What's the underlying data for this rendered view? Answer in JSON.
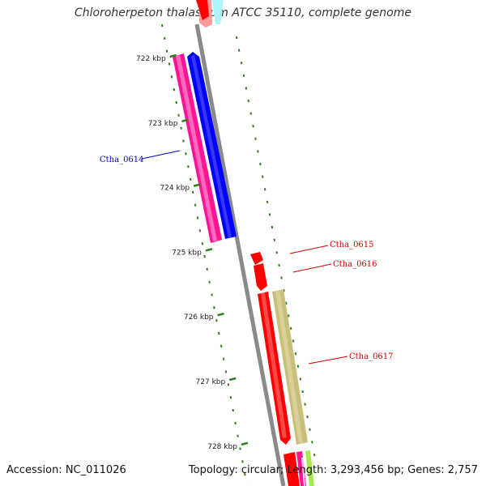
{
  "title": "Chloroherpeton thalassium ATCC 35110, complete genome",
  "footer": {
    "accession": "Accession: NC_011026",
    "summary": "Topology: circular; Length: 3,293,456 bp; Genes: 2,757"
  },
  "ticks": [
    {
      "label": "722 kbp",
      "kbp": 722
    },
    {
      "label": "723 kbp",
      "kbp": 723
    },
    {
      "label": "724 kbp",
      "kbp": 724
    },
    {
      "label": "725 kbp",
      "kbp": 725
    },
    {
      "label": "726 kbp",
      "kbp": 726
    },
    {
      "label": "727 kbp",
      "kbp": 727
    },
    {
      "label": "728 kbp",
      "kbp": 728
    }
  ],
  "gene_labels": [
    {
      "text": "Ctha_0614",
      "color": "#0000cc"
    },
    {
      "text": "Ctha_0615",
      "color": "#cc0000"
    },
    {
      "text": "Ctha_0616",
      "color": "#cc0000"
    },
    {
      "text": "Ctha_0617",
      "color": "#cc0000"
    }
  ],
  "colors": {
    "backbone": "#8a8a8a",
    "tick_green": "#2e7d1f",
    "magenta": "#ff1493",
    "blue": "#0000ff",
    "red": "#ff0000",
    "khaki": "#c8bf7a",
    "cyan": "#aef4fb",
    "lime": "#a8e84a"
  }
}
